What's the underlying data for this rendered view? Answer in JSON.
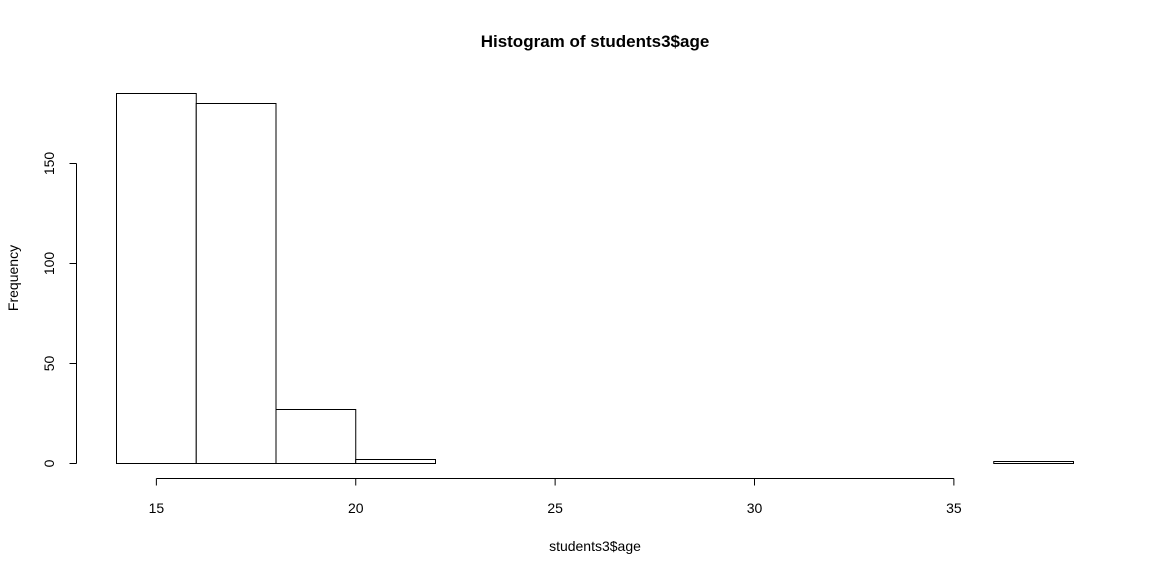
{
  "chart_data": {
    "type": "bar",
    "title": "Histogram of students3$age",
    "xlabel": "students3$age",
    "ylabel": "Frequency",
    "bins": [
      {
        "x0": 14,
        "x1": 16,
        "count": 185
      },
      {
        "x0": 16,
        "x1": 18,
        "count": 180
      },
      {
        "x0": 18,
        "x1": 20,
        "count": 27
      },
      {
        "x0": 20,
        "x1": 22,
        "count": 2
      },
      {
        "x0": 22,
        "x1": 24,
        "count": 0
      },
      {
        "x0": 24,
        "x1": 26,
        "count": 0
      },
      {
        "x0": 26,
        "x1": 28,
        "count": 0
      },
      {
        "x0": 28,
        "x1": 30,
        "count": 0
      },
      {
        "x0": 30,
        "x1": 32,
        "count": 0
      },
      {
        "x0": 32,
        "x1": 34,
        "count": 0
      },
      {
        "x0": 34,
        "x1": 36,
        "count": 0
      },
      {
        "x0": 36,
        "x1": 38,
        "count": 1
      }
    ],
    "xlim": [
      14,
      38
    ],
    "ylim": [
      0,
      185
    ],
    "x_ticks": [
      15,
      20,
      25,
      30,
      35
    ],
    "y_ticks": [
      0,
      50,
      100,
      150
    ],
    "grid": false
  }
}
